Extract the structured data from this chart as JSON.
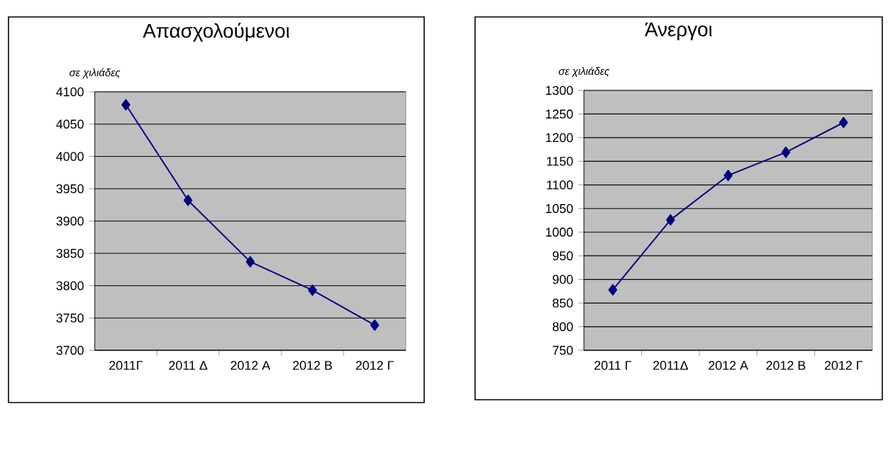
{
  "chart_data": [
    {
      "type": "line",
      "title": "Απασχολούμενοι",
      "ylabel": "σε χιλιάδες",
      "categories": [
        "2011Γ",
        "2011 Δ",
        "2012 Α",
        "2012 Β",
        "2012 Γ"
      ],
      "series": [
        {
          "color": "#000080",
          "values": [
            4080,
            3932,
            3837,
            3793,
            3739
          ]
        }
      ],
      "ylim": [
        3700,
        4100
      ],
      "yticks": [
        3700,
        3750,
        3800,
        3850,
        3900,
        3950,
        4000,
        4050,
        4100
      ],
      "grid": "y",
      "marker": "diamond",
      "line_style": "solid"
    },
    {
      "type": "line",
      "title": "Άνεργοι",
      "ylabel": "σε χιλιάδες",
      "categories": [
        "2011 Γ",
        "2011Δ",
        "2012 Α",
        "2012 Β",
        "2012 Γ"
      ],
      "series": [
        {
          "color": "#000080",
          "values": [
            878,
            1026,
            1120,
            1169,
            1232
          ]
        }
      ],
      "ylim": [
        750,
        1300
      ],
      "yticks": [
        750,
        800,
        850,
        900,
        950,
        1000,
        1050,
        1100,
        1150,
        1200,
        1250,
        1300
      ],
      "grid": "y",
      "marker": "diamond",
      "line_style": "solid"
    }
  ]
}
